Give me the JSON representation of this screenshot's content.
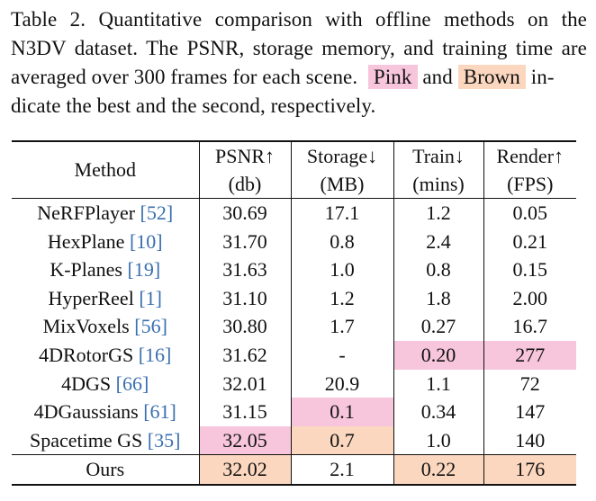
{
  "caption": {
    "line1": "Table 2.  Quantitative comparison with offline methods on the",
    "line2": "N3DV dataset. The PSNR, storage memory, and training time are",
    "line3_a": "averaged over 300 frames for each scene.",
    "pink_label": "Pink",
    "and_word": "and",
    "brown_label": "Brown",
    "line3_b": "in-",
    "line4": "dicate the best and the second, respectively."
  },
  "table": {
    "headers": {
      "method": "Method",
      "psnr": "PSNR↑",
      "psnr_unit": "(db)",
      "storage": "Storage↓",
      "storage_unit": "(MB)",
      "train": "Train↓",
      "train_unit": "(mins)",
      "render": "Render↑",
      "render_unit": "(FPS)"
    },
    "rows": [
      {
        "method": "NeRFPlayer",
        "cite": "[52]",
        "psnr": "30.69",
        "storage": "17.1",
        "train": "1.2",
        "render": "0.05"
      },
      {
        "method": "HexPlane",
        "cite": "[10]",
        "psnr": "31.70",
        "storage": "0.8",
        "train": "2.4",
        "render": "0.21"
      },
      {
        "method": "K-Planes",
        "cite": "[19]",
        "psnr": "31.63",
        "storage": "1.0",
        "train": "0.8",
        "render": "0.15"
      },
      {
        "method": "HyperReel",
        "cite": "[1]",
        "psnr": "31.10",
        "storage": "1.2",
        "train": "1.8",
        "render": "2.00"
      },
      {
        "method": "MixVoxels",
        "cite": "[56]",
        "psnr": "30.80",
        "storage": "1.7",
        "train": "0.27",
        "render": "16.7"
      },
      {
        "method": "4DRotorGS",
        "cite": "[16]",
        "psnr": "31.62",
        "storage": "-",
        "train": "0.20",
        "render": "277"
      },
      {
        "method": "4DGS",
        "cite": "[66]",
        "psnr": "32.01",
        "storage": "20.9",
        "train": "1.1",
        "render": "72"
      },
      {
        "method": "4DGaussians",
        "cite": "[61]",
        "psnr": "31.15",
        "storage": "0.1",
        "train": "0.34",
        "render": "147"
      },
      {
        "method": "Spacetime GS",
        "cite": "[35]",
        "psnr": "32.05",
        "storage": "0.7",
        "train": "1.0",
        "render": "140"
      },
      {
        "method": "Ours",
        "cite": "",
        "psnr": "32.02",
        "storage": "2.1",
        "train": "0.22",
        "render": "176"
      }
    ]
  },
  "colors": {
    "best_pink": "#f7c5dc",
    "second_brown": "#fbd7bf",
    "citation_blue": "#3a6fb0"
  }
}
